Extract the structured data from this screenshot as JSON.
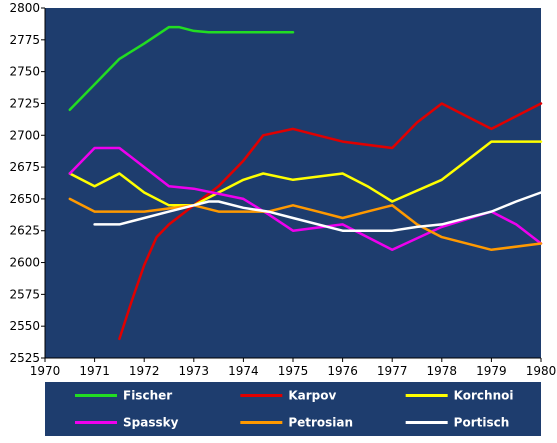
{
  "chart_data": {
    "type": "line",
    "title": "",
    "xlabel": "",
    "ylabel": "",
    "xlim": [
      1970,
      1980
    ],
    "ylim": [
      2525,
      2800
    ],
    "x_ticks": [
      "1970",
      "1971",
      "1972",
      "1973",
      "1974",
      "1975",
      "1976",
      "1977",
      "1978",
      "1979",
      "1980"
    ],
    "y_ticks": [
      "2525",
      "2550",
      "2575",
      "2600",
      "2625",
      "2650",
      "2675",
      "2700",
      "2725",
      "2750",
      "2775",
      "2800"
    ],
    "grid": false,
    "legend_position": "bottom",
    "background_color": "#1e3d6e",
    "legend_background_color": "#1e3d6e",
    "series": [
      {
        "name": "Fischer",
        "color": "#22dd22",
        "points": [
          [
            1970.5,
            2720
          ],
          [
            1971,
            2740
          ],
          [
            1971.5,
            2760
          ],
          [
            1972,
            2772
          ],
          [
            1972.5,
            2785
          ],
          [
            1972.7,
            2785
          ],
          [
            1973,
            2782
          ],
          [
            1973.3,
            2781
          ],
          [
            1974,
            2781
          ],
          [
            1975,
            2781
          ]
        ]
      },
      {
        "name": "Karpov",
        "color": "#e00000",
        "points": [
          [
            1971.5,
            2540
          ],
          [
            1971.75,
            2570
          ],
          [
            1972,
            2598
          ],
          [
            1972.25,
            2620
          ],
          [
            1972.5,
            2630
          ],
          [
            1973,
            2645
          ],
          [
            1973.5,
            2660
          ],
          [
            1974,
            2680
          ],
          [
            1974.4,
            2700
          ],
          [
            1975,
            2705
          ],
          [
            1975.5,
            2700
          ],
          [
            1976,
            2695
          ],
          [
            1977,
            2690
          ],
          [
            1977.5,
            2710
          ],
          [
            1978,
            2725
          ],
          [
            1978.5,
            2715
          ],
          [
            1979,
            2705
          ],
          [
            1980,
            2725
          ]
        ]
      },
      {
        "name": "Korchnoi",
        "color": "#ffff00",
        "points": [
          [
            1970.5,
            2670
          ],
          [
            1971,
            2660
          ],
          [
            1971.5,
            2670
          ],
          [
            1972,
            2655
          ],
          [
            1972.5,
            2645
          ],
          [
            1973,
            2645
          ],
          [
            1973.5,
            2655
          ],
          [
            1974,
            2665
          ],
          [
            1974.4,
            2670
          ],
          [
            1975,
            2665
          ],
          [
            1976,
            2670
          ],
          [
            1976.5,
            2660
          ],
          [
            1977,
            2648
          ],
          [
            1978,
            2665
          ],
          [
            1978.5,
            2680
          ],
          [
            1979,
            2695
          ],
          [
            1980,
            2695
          ]
        ]
      },
      {
        "name": "Spassky",
        "color": "#ee00ee",
        "points": [
          [
            1970.5,
            2670
          ],
          [
            1971,
            2690
          ],
          [
            1971.5,
            2690
          ],
          [
            1972,
            2675
          ],
          [
            1972.5,
            2660
          ],
          [
            1973,
            2658
          ],
          [
            1974,
            2650
          ],
          [
            1974.5,
            2638
          ],
          [
            1975,
            2625
          ],
          [
            1976,
            2630
          ],
          [
            1977,
            2610
          ],
          [
            1978,
            2628
          ],
          [
            1979,
            2640
          ],
          [
            1979.5,
            2630
          ],
          [
            1980,
            2615
          ]
        ]
      },
      {
        "name": "Petrosian",
        "color": "#ff9900",
        "points": [
          [
            1970.5,
            2650
          ],
          [
            1971,
            2640
          ],
          [
            1972,
            2640
          ],
          [
            1973,
            2645
          ],
          [
            1973.5,
            2640
          ],
          [
            1974,
            2640
          ],
          [
            1974.5,
            2640
          ],
          [
            1975,
            2645
          ],
          [
            1975.5,
            2640
          ],
          [
            1976,
            2635
          ],
          [
            1976.5,
            2640
          ],
          [
            1977,
            2645
          ],
          [
            1977.5,
            2630
          ],
          [
            1978,
            2620
          ],
          [
            1979,
            2610
          ],
          [
            1980,
            2615
          ]
        ]
      },
      {
        "name": "Portisch",
        "color": "#ffffff",
        "points": [
          [
            1971,
            2630
          ],
          [
            1971.5,
            2630
          ],
          [
            1972,
            2635
          ],
          [
            1972.5,
            2640
          ],
          [
            1973,
            2645
          ],
          [
            1973.3,
            2648
          ],
          [
            1973.5,
            2648
          ],
          [
            1974,
            2643
          ],
          [
            1974.5,
            2640
          ],
          [
            1975,
            2635
          ],
          [
            1976,
            2625
          ],
          [
            1977,
            2625
          ],
          [
            1977.5,
            2628
          ],
          [
            1978,
            2630
          ],
          [
            1979,
            2640
          ],
          [
            1979.5,
            2648
          ],
          [
            1980,
            2655
          ]
        ]
      }
    ]
  }
}
